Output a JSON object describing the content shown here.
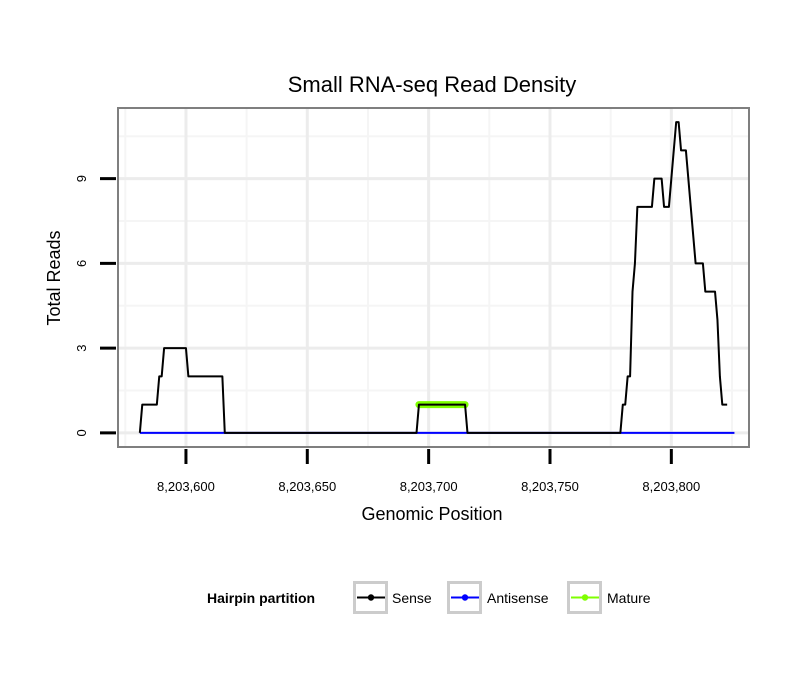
{
  "chart_data": {
    "type": "line",
    "title": "Small RNA-seq Read Density",
    "xlabel": "Genomic Position",
    "ylabel": "Total Reads",
    "xlim": [
      8203572,
      8203832
    ],
    "ylim": [
      -0.5,
      11.5
    ],
    "xticks": [
      8203600,
      8203650,
      8203700,
      8203750,
      8203800
    ],
    "xtick_labels": [
      "8,203,600",
      "8,203,650",
      "8,203,700",
      "8,203,750",
      "8,203,800"
    ],
    "yticks": [
      0,
      3,
      6,
      9
    ],
    "ytick_labels": [
      "0",
      "3",
      "6",
      "9"
    ],
    "grid": true,
    "legend": {
      "title": "Hairpin partition",
      "position": "bottom",
      "entries": [
        {
          "name": "Sense",
          "color": "#000000"
        },
        {
          "name": "Antisense",
          "color": "#0000ff"
        },
        {
          "name": "Mature",
          "color": "#7fff00"
        }
      ]
    },
    "series": [
      {
        "name": "Sense",
        "color": "#000000",
        "points": [
          [
            8203581,
            0
          ],
          [
            8203582,
            1
          ],
          [
            8203588,
            1
          ],
          [
            8203589,
            2
          ],
          [
            8203590,
            2
          ],
          [
            8203591,
            3
          ],
          [
            8203600,
            3
          ],
          [
            8203601,
            2
          ],
          [
            8203615,
            2
          ],
          [
            8203616,
            0
          ],
          [
            8203695,
            0
          ],
          [
            8203696,
            1
          ],
          [
            8203715,
            1
          ],
          [
            8203716,
            0
          ],
          [
            8203779,
            0
          ],
          [
            8203780,
            1
          ],
          [
            8203781,
            1
          ],
          [
            8203782,
            2
          ],
          [
            8203783,
            2
          ],
          [
            8203784,
            5
          ],
          [
            8203785,
            6
          ],
          [
            8203786,
            8
          ],
          [
            8203792,
            8
          ],
          [
            8203793,
            9
          ],
          [
            8203796,
            9
          ],
          [
            8203797,
            8
          ],
          [
            8203799,
            8
          ],
          [
            8203800,
            9
          ],
          [
            8203802,
            11
          ],
          [
            8203803,
            11
          ],
          [
            8203804,
            10
          ],
          [
            8203806,
            10
          ],
          [
            8203807,
            9
          ],
          [
            8203808,
            8
          ],
          [
            8203809,
            7
          ],
          [
            8203810,
            6
          ],
          [
            8203813,
            6
          ],
          [
            8203814,
            5
          ],
          [
            8203818,
            5
          ],
          [
            8203819,
            4
          ],
          [
            8203820,
            2
          ],
          [
            8203821,
            1
          ],
          [
            8203823,
            1
          ]
        ]
      },
      {
        "name": "Antisense",
        "color": "#0000ff",
        "points": [
          [
            8203581,
            0
          ],
          [
            8203826,
            0
          ]
        ]
      },
      {
        "name": "Mature",
        "color": "#7fff00",
        "points": [
          [
            8203696,
            1
          ],
          [
            8203715,
            1
          ]
        ]
      }
    ]
  }
}
